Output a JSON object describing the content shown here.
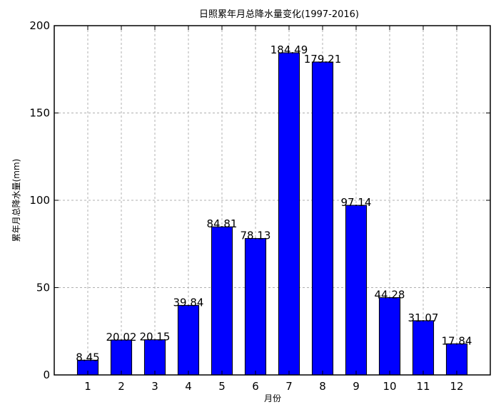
{
  "chart_data": {
    "type": "bar",
    "title": "日照累年月总降水量变化(1997-2016)",
    "xlabel": "月份",
    "ylabel": "累年月总降水量(mm)",
    "categories": [
      "1",
      "2",
      "3",
      "4",
      "5",
      "6",
      "7",
      "8",
      "9",
      "10",
      "11",
      "12"
    ],
    "values": [
      8.45,
      20.02,
      20.15,
      39.84,
      84.81,
      78.13,
      184.49,
      179.21,
      97.14,
      44.28,
      31.07,
      17.84
    ],
    "value_labels": [
      "8.45",
      "20.02",
      "20.15",
      "39.84",
      "84.81",
      "78.13",
      "184.49",
      "179.21",
      "97.14",
      "44.28",
      "31.07",
      "17.84"
    ],
    "ylim": [
      0,
      200
    ],
    "yticks": [
      "0",
      "50",
      "100",
      "150",
      "200"
    ],
    "grid": true,
    "bar_color": "#0000ff"
  }
}
